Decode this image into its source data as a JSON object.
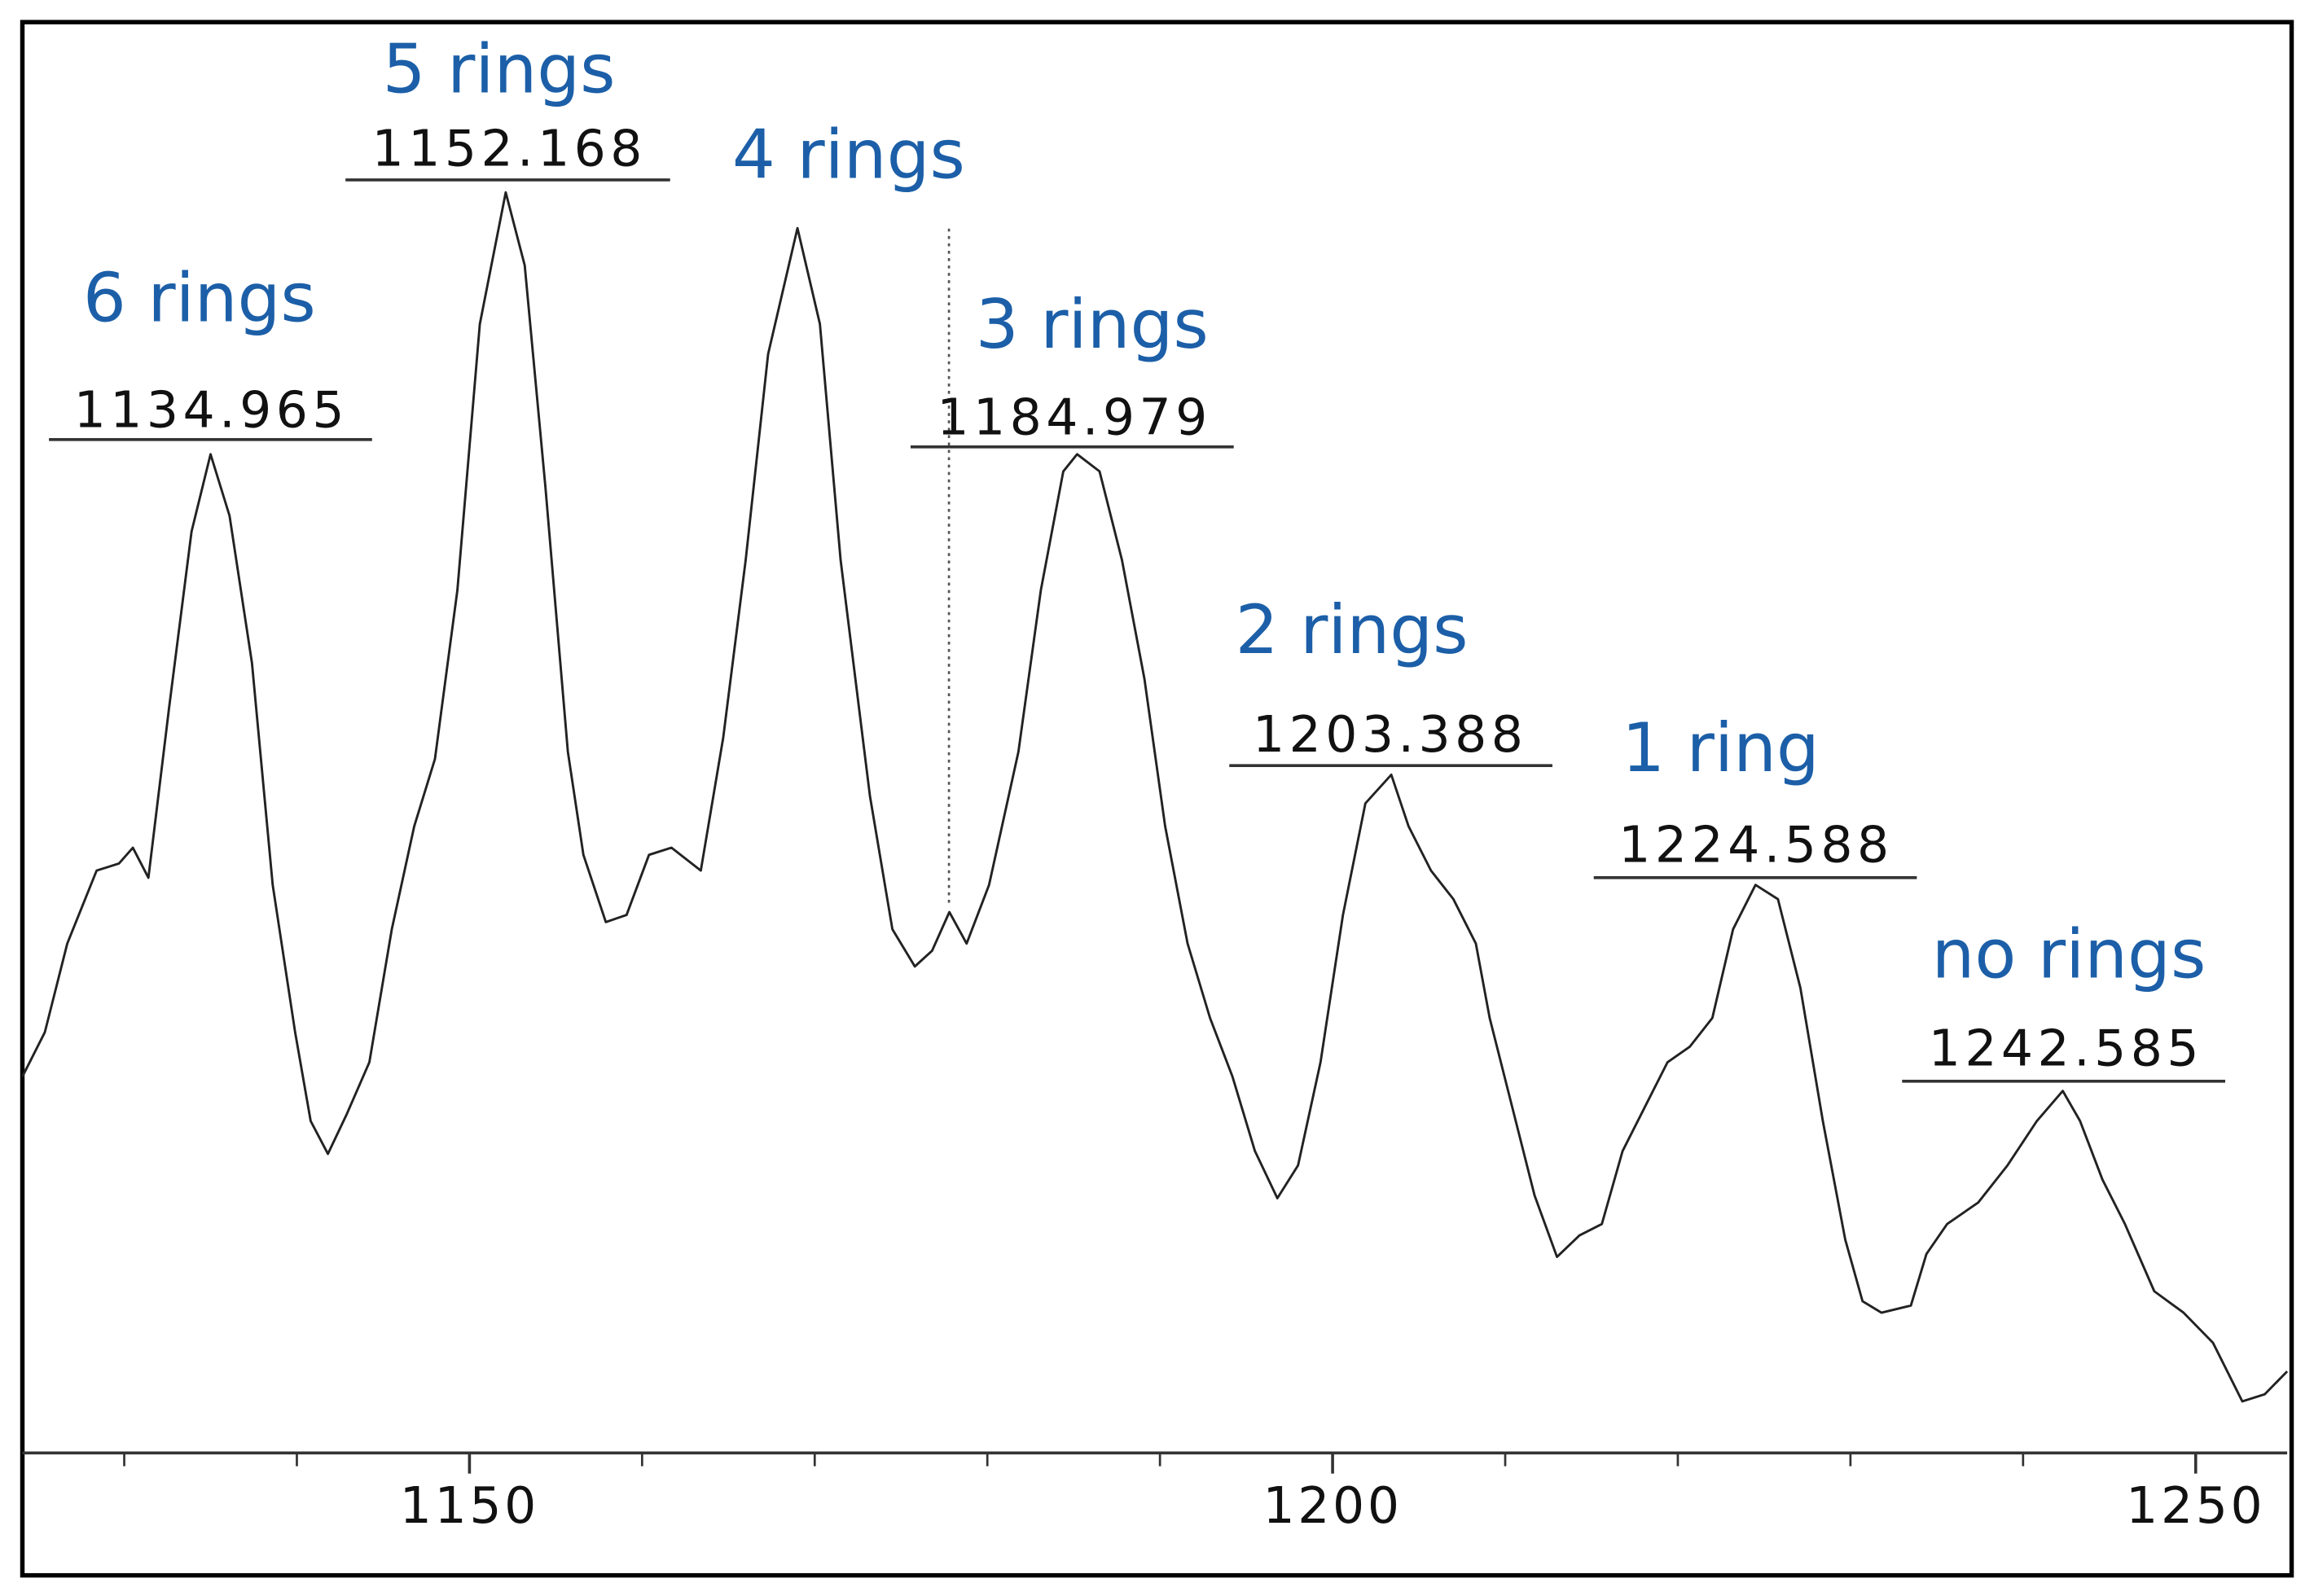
{
  "chart_data": {
    "type": "line",
    "x": [
      1124.1,
      1125.4,
      1126.7,
      1128.4,
      1129.7,
      1130.5,
      1131.4,
      1132.6,
      1133.9,
      1135.0,
      1136.1,
      1137.4,
      1138.6,
      1139.9,
      1140.8,
      1141.8,
      1142.9,
      1144.2,
      1145.5,
      1146.8,
      1148.0,
      1149.3,
      1150.6,
      1152.1,
      1153.2,
      1154.4,
      1155.7,
      1156.6,
      1157.9,
      1159.1,
      1160.4,
      1161.7,
      1163.4,
      1164.7,
      1166.0,
      1167.3,
      1169.0,
      1170.3,
      1171.5,
      1173.2,
      1174.5,
      1175.8,
      1176.8,
      1177.8,
      1178.8,
      1180.1,
      1181.8,
      1183.1,
      1184.4,
      1185.2,
      1186.5,
      1187.8,
      1189.1,
      1190.3,
      1191.6,
      1192.9,
      1194.2,
      1195.5,
      1196.8,
      1198.0,
      1199.3,
      1200.6,
      1201.9,
      1203.4,
      1204.4,
      1205.7,
      1207.0,
      1208.3,
      1209.1,
      1210.4,
      1211.7,
      1213.0,
      1214.3,
      1215.6,
      1216.8,
      1218.1,
      1219.4,
      1220.7,
      1222.0,
      1223.2,
      1224.5,
      1225.8,
      1227.1,
      1228.4,
      1229.7,
      1230.7,
      1231.8,
      1233.5,
      1234.4,
      1235.6,
      1237.4,
      1239.1,
      1240.8,
      1242.3,
      1243.3,
      1244.6,
      1245.9,
      1247.6,
      1249.3,
      1251.0,
      1252.7,
      1254.0,
      1255.3
    ],
    "values": [
      26.3,
      29.4,
      35.6,
      40.7,
      41.2,
      42.3,
      40.2,
      52.1,
      64.4,
      69.8,
      65.5,
      55.2,
      39.7,
      29.4,
      23.2,
      20.9,
      23.7,
      27.3,
      36.6,
      43.8,
      48.5,
      60.3,
      78.9,
      88.1,
      83.0,
      67.5,
      49.0,
      41.8,
      37.1,
      37.6,
      41.8,
      42.3,
      40.7,
      50.0,
      62.4,
      76.8,
      85.6,
      78.9,
      62.4,
      45.9,
      36.6,
      34.0,
      35.1,
      37.8,
      35.6,
      39.7,
      49.0,
      60.3,
      68.6,
      69.8,
      68.6,
      62.4,
      54.1,
      43.8,
      35.6,
      30.4,
      26.3,
      21.1,
      17.8,
      20.1,
      27.3,
      37.6,
      45.4,
      47.4,
      43.8,
      40.7,
      38.7,
      35.6,
      30.4,
      24.2,
      18.0,
      13.7,
      15.2,
      16.0,
      21.1,
      24.2,
      27.3,
      28.4,
      30.4,
      36.6,
      39.7,
      38.7,
      32.5,
      23.2,
      14.9,
      10.6,
      9.8,
      10.3,
      13.9,
      16.0,
      17.5,
      20.1,
      23.2,
      25.3,
      23.2,
      19.1,
      16.0,
      11.3,
      9.8,
      7.7,
      3.6,
      4.1,
      5.7
    ],
    "color": "#222222",
    "xlim": [
      1124.1,
      1255.3
    ],
    "ylim": [
      0,
      100
    ],
    "xticks": [
      1150,
      1200,
      1250
    ],
    "xminorticks": [
      1130,
      1140,
      1160,
      1170,
      1180,
      1190,
      1210,
      1220,
      1230,
      1240
    ],
    "annotations": [
      {
        "name": "6 rings",
        "mz": 1134.965
      },
      {
        "name": "5 rings",
        "mz": 1152.168
      },
      {
        "name": "4 rings"
      },
      {
        "name": "3 rings",
        "mz": 1184.979
      },
      {
        "name": "2 rings",
        "mz": 1203.388
      },
      {
        "name": "1 ring",
        "mz": 1224.588
      },
      {
        "name": "no rings",
        "mz": 1242.585
      }
    ]
  }
}
